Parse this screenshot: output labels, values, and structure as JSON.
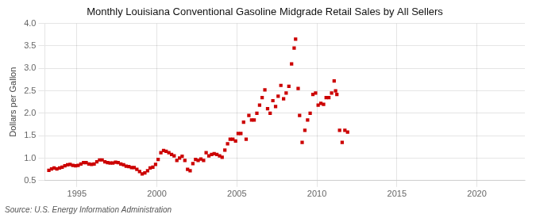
{
  "chart_data": {
    "type": "scatter",
    "title": "Monthly Louisiana Conventional Gasoline Midgrade Retail Sales by All Sellers",
    "ylabel": "Dollars per Gallon",
    "source": "Source: U.S. Energy Information Administration",
    "color": "#cc0000",
    "marker": "square",
    "grid": true,
    "xlim": [
      1993.0,
      2023.0
    ],
    "xticks": [
      1995,
      2000,
      2005,
      2010,
      2015,
      2020
    ],
    "ylim": [
      0.5,
      4.0
    ],
    "yticks": [
      0.5,
      {
        "value": 1.0,
        "label": "1.0"
      },
      1.5,
      {
        "value": 2.0,
        "label": "2.0"
      },
      2.5,
      {
        "value": 3.0,
        "label": "3.0"
      },
      3.5,
      {
        "value": 4.0,
        "label": "4.0"
      }
    ],
    "x": [
      1993.25,
      1993.42,
      1993.58,
      1993.75,
      1993.92,
      1994.08,
      1994.25,
      1994.42,
      1994.58,
      1994.75,
      1994.92,
      1995.08,
      1995.25,
      1995.42,
      1995.58,
      1995.75,
      1995.92,
      1996.08,
      1996.25,
      1996.42,
      1996.58,
      1996.75,
      1996.92,
      1997.08,
      1997.25,
      1997.42,
      1997.58,
      1997.75,
      1997.92,
      1998.08,
      1998.25,
      1998.42,
      1998.58,
      1998.75,
      1998.92,
      1999.08,
      1999.25,
      1999.42,
      1999.58,
      1999.75,
      1999.92,
      2000.08,
      2000.25,
      2000.42,
      2000.58,
      2000.75,
      2000.92,
      2001.08,
      2001.25,
      2001.42,
      2001.58,
      2001.75,
      2001.92,
      2002.08,
      2002.25,
      2002.42,
      2002.58,
      2002.75,
      2002.92,
      2003.08,
      2003.25,
      2003.42,
      2003.58,
      2003.75,
      2003.92,
      2004.08,
      2004.25,
      2004.42,
      2004.58,
      2004.75,
      2004.92,
      2005.08,
      2005.25,
      2005.42,
      2005.58,
      2005.75,
      2005.92,
      2006.08,
      2006.25,
      2006.42,
      2006.58,
      2006.75,
      2006.92,
      2007.08,
      2007.25,
      2007.42,
      2007.58,
      2007.75,
      2007.92,
      2008.08,
      2008.25,
      2008.42,
      2008.58,
      2008.67,
      2008.83,
      2008.92,
      2009.08,
      2009.25,
      2009.42,
      2009.58,
      2009.75,
      2009.92,
      2010.08,
      2010.25,
      2010.42,
      2010.58,
      2010.75,
      2010.92,
      2011.08,
      2011.17,
      2011.25,
      2011.42,
      2011.58,
      2011.75,
      2011.92
    ],
    "values": [
      0.73,
      0.76,
      0.78,
      0.76,
      0.78,
      0.8,
      0.83,
      0.85,
      0.86,
      0.84,
      0.83,
      0.84,
      0.87,
      0.9,
      0.9,
      0.87,
      0.86,
      0.87,
      0.92,
      0.96,
      0.96,
      0.92,
      0.9,
      0.89,
      0.89,
      0.91,
      0.9,
      0.87,
      0.85,
      0.82,
      0.81,
      0.79,
      0.79,
      0.75,
      0.7,
      0.65,
      0.67,
      0.72,
      0.78,
      0.8,
      0.86,
      0.97,
      1.12,
      1.17,
      1.15,
      1.12,
      1.08,
      1.05,
      0.95,
      1.0,
      1.04,
      0.95,
      0.75,
      0.72,
      0.88,
      0.97,
      0.95,
      0.98,
      0.95,
      1.12,
      1.05,
      1.08,
      1.1,
      1.08,
      1.05,
      1.02,
      1.18,
      1.32,
      1.42,
      1.42,
      1.38,
      1.55,
      1.55,
      1.8,
      1.42,
      1.95,
      1.85,
      1.85,
      2.0,
      2.18,
      2.35,
      2.52,
      2.1,
      2.0,
      2.28,
      2.15,
      2.38,
      2.62,
      2.32,
      2.45,
      2.6,
      3.1,
      3.45,
      3.65,
      2.55,
      1.95,
      1.35,
      1.62,
      1.85,
      2.0,
      2.42,
      2.45,
      2.18,
      2.22,
      2.2,
      2.35,
      2.35,
      2.45,
      2.72,
      2.5,
      2.42,
      1.62,
      1.35,
      1.62,
      1.58
    ]
  }
}
